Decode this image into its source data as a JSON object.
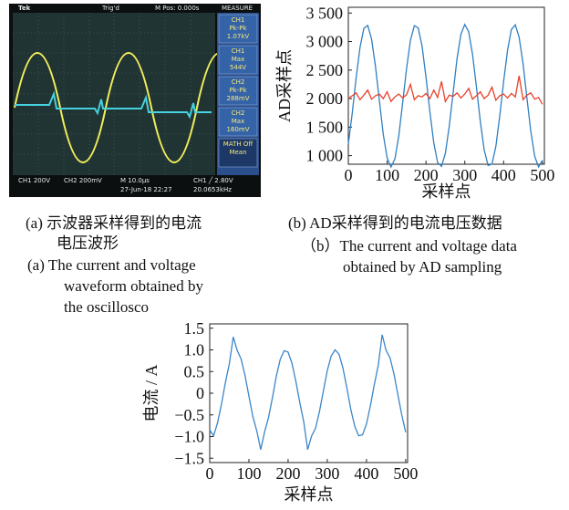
{
  "oscilloscope": {
    "top": {
      "brand": "Tek",
      "trigger": "Trig'd",
      "position": "M Pos: 0.000s",
      "menu": "MEASURE"
    },
    "menu": [
      [
        "CH1",
        "Pk-Pk",
        "1.07kV"
      ],
      [
        "CH1",
        "Max",
        "544V"
      ],
      [
        "CH2",
        "Pk-Pk",
        "288mV"
      ],
      [
        "CH2",
        "Max",
        "160mV"
      ],
      [
        "MATH Off",
        "Mean"
      ]
    ],
    "bottom": {
      "ch1": "CH1  200V",
      "ch2": "CH2  200mV",
      "time": "M 10.0µs",
      "date": "27-Jun-18 22:27",
      "trig": "CH1  ╱  2.80V",
      "freq": "20.0653kHz"
    }
  },
  "captions": {
    "a": [
      "(a)  示波器采样得到的电流",
      "电压波形",
      "(a)  The current and voltage",
      "waveform obtained by",
      "the oscillosco"
    ],
    "b": [
      "(b)  AD采样得到的电流电压数据",
      "（b）The current and voltage data",
      "obtained by AD sampling"
    ]
  },
  "chart_data": [
    {
      "type": "line",
      "ylabel": "AD采样点",
      "xlabel": "采样点",
      "xlim": [
        0,
        505
      ],
      "xticks": [
        0,
        100,
        200,
        300,
        400,
        500
      ],
      "ylim": [
        850,
        3600
      ],
      "yticks": [
        {
          "value": 1000,
          "label": "1 000"
        },
        {
          "value": 1500,
          "label": "1 500"
        },
        {
          "value": 2000,
          "label": "2 000"
        },
        {
          "value": 2500,
          "label": "2 500"
        },
        {
          "value": 3000,
          "label": "3 000"
        },
        {
          "value": 3500,
          "label": "3 500"
        }
      ],
      "x": [
        0,
        10,
        20,
        30,
        40,
        50,
        60,
        70,
        80,
        90,
        100,
        110,
        120,
        130,
        140,
        150,
        160,
        170,
        180,
        190,
        200,
        210,
        220,
        230,
        240,
        250,
        260,
        270,
        280,
        290,
        300,
        310,
        320,
        330,
        340,
        350,
        360,
        370,
        380,
        390,
        400,
        410,
        420,
        430,
        440,
        450,
        460,
        470,
        480,
        490,
        500
      ],
      "series": [
        {
          "color": "#2f7fc1",
          "values": [
            1205,
            1744,
            2356,
            2895,
            3231,
            3284,
            3041,
            2561,
            1957,
            1376,
            957,
            800,
            942,
            1345,
            1928,
            2532,
            3022,
            3279,
            3240,
            2917,
            2385,
            1774,
            1226,
            878,
            814,
            1041,
            1518,
            2112,
            2698,
            3128,
            3299,
            3171,
            2775,
            2203,
            1594,
            1099,
            828,
            851,
            1164,
            1686,
            2298,
            2849,
            3210,
            3293,
            3076,
            2615,
            2018,
            1429,
            989,
            802,
            918
          ]
        },
        {
          "color": "#e8402a",
          "values": [
            2000,
            2050,
            2100,
            1980,
            2060,
            2150,
            1990,
            2050,
            2080,
            2000,
            2120,
            1950,
            2030,
            2080,
            2010,
            2070,
            2250,
            1980,
            2050,
            2030,
            2090,
            2000,
            2150,
            2020,
            2300,
            1950,
            2060,
            2040,
            2100,
            2010,
            2080,
            2180,
            1990,
            2050,
            2120,
            2000,
            2060,
            2200,
            1970,
            2050,
            2080,
            2010,
            2090,
            2030,
            2400,
            1980,
            2060,
            2100,
            1990,
            2020,
            1900
          ]
        }
      ]
    },
    {
      "type": "line",
      "ylabel": "电流 / A",
      "xlabel": "采样点",
      "xlim": [
        0,
        505
      ],
      "xticks": [
        0,
        100,
        200,
        300,
        400,
        500
      ],
      "ylim": [
        -1.6,
        1.6
      ],
      "yticks": [
        {
          "value": -1.5,
          "label": "−1.5"
        },
        {
          "value": -1,
          "label": "−1.0"
        },
        {
          "value": -0.5,
          "label": "−0.5"
        },
        0,
        0.5,
        {
          "value": 1,
          "label": "1.0"
        },
        1.5
      ],
      "x": [
        0,
        10,
        20,
        30,
        40,
        50,
        60,
        70,
        80,
        90,
        100,
        110,
        120,
        130,
        140,
        150,
        160,
        170,
        180,
        190,
        200,
        210,
        220,
        230,
        240,
        250,
        260,
        270,
        280,
        290,
        300,
        310,
        320,
        330,
        340,
        350,
        360,
        370,
        380,
        390,
        400,
        410,
        420,
        430,
        440,
        450,
        460,
        470,
        480,
        490,
        500
      ],
      "series": [
        {
          "color": "#3a86c8",
          "values": [
            -0.85,
            -0.98,
            -0.68,
            -0.25,
            0.25,
            0.68,
            1.3,
            0.99,
            0.79,
            0.41,
            -0.07,
            -0.54,
            -0.87,
            -1.3,
            -0.89,
            -0.56,
            -0.1,
            0.39,
            0.78,
            0.98,
            0.95,
            0.69,
            0.27,
            -0.22,
            -0.66,
            -1.3,
            -0.99,
            -0.81,
            -0.43,
            0.05,
            0.52,
            0.86,
            1.0,
            0.9,
            0.58,
            0.12,
            -0.37,
            -0.76,
            -0.98,
            -0.96,
            -0.71,
            -0.29,
            0.2,
            0.64,
            1.35,
            0.99,
            0.82,
            0.45,
            -0.03,
            -0.5,
            -0.9
          ]
        }
      ]
    }
  ]
}
